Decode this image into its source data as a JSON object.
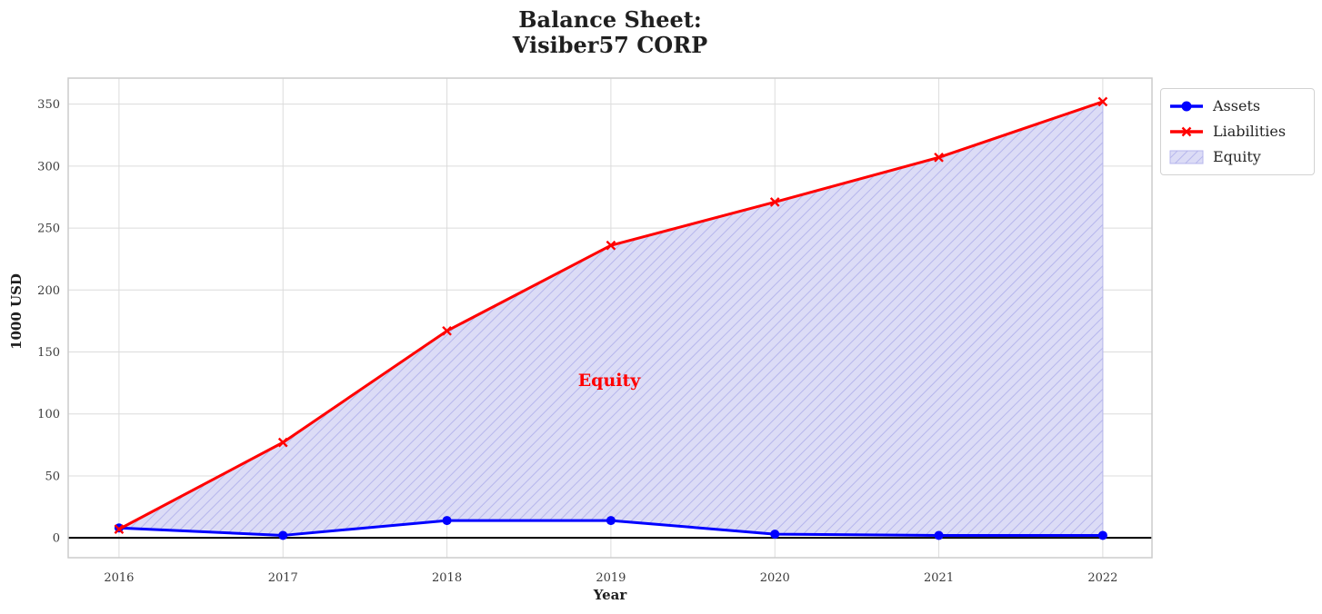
{
  "chart_data": {
    "type": "line",
    "title": "Balance Sheet:\nVisiber57 CORP",
    "title_lines": [
      "Balance Sheet:",
      "Visiber57 CORP"
    ],
    "xlabel": "Year",
    "ylabel": "1000 USD",
    "x": [
      2016,
      2017,
      2018,
      2019,
      2020,
      2021,
      2022
    ],
    "series": [
      {
        "name": "Assets",
        "color": "#0000ff",
        "marker": "circle",
        "line_width": 3,
        "values": [
          8,
          2,
          14,
          14,
          3,
          2,
          2
        ]
      },
      {
        "name": "Liabilities",
        "color": "#ff0000",
        "marker": "x",
        "line_width": 3,
        "values": [
          7,
          77,
          167,
          236,
          271,
          307,
          352
        ]
      }
    ],
    "area": {
      "name": "Equity",
      "between": [
        "Liabilities",
        "Assets"
      ],
      "fill_color": "#dcdcf6",
      "hatch_color": "#b6b6ec",
      "hatch": "//"
    },
    "annotation": {
      "text": "Equity",
      "x": 2019,
      "y": 126,
      "color": "#ff0000"
    },
    "axhline": {
      "y": 0,
      "color": "#000000",
      "width": 2
    },
    "xticks": [
      2016,
      2017,
      2018,
      2019,
      2020,
      2021,
      2022
    ],
    "yticks": [
      0,
      50,
      100,
      150,
      200,
      250,
      300,
      350
    ],
    "xlim": [
      2015.69,
      2022.3
    ],
    "ylim": [
      -16,
      371
    ],
    "grid": true,
    "grid_color": "#dcdcdc",
    "frame_color": "#cccccc",
    "legend": {
      "position": "outside upper right",
      "entries": [
        "Assets",
        "Liabilities",
        "Equity"
      ]
    }
  }
}
